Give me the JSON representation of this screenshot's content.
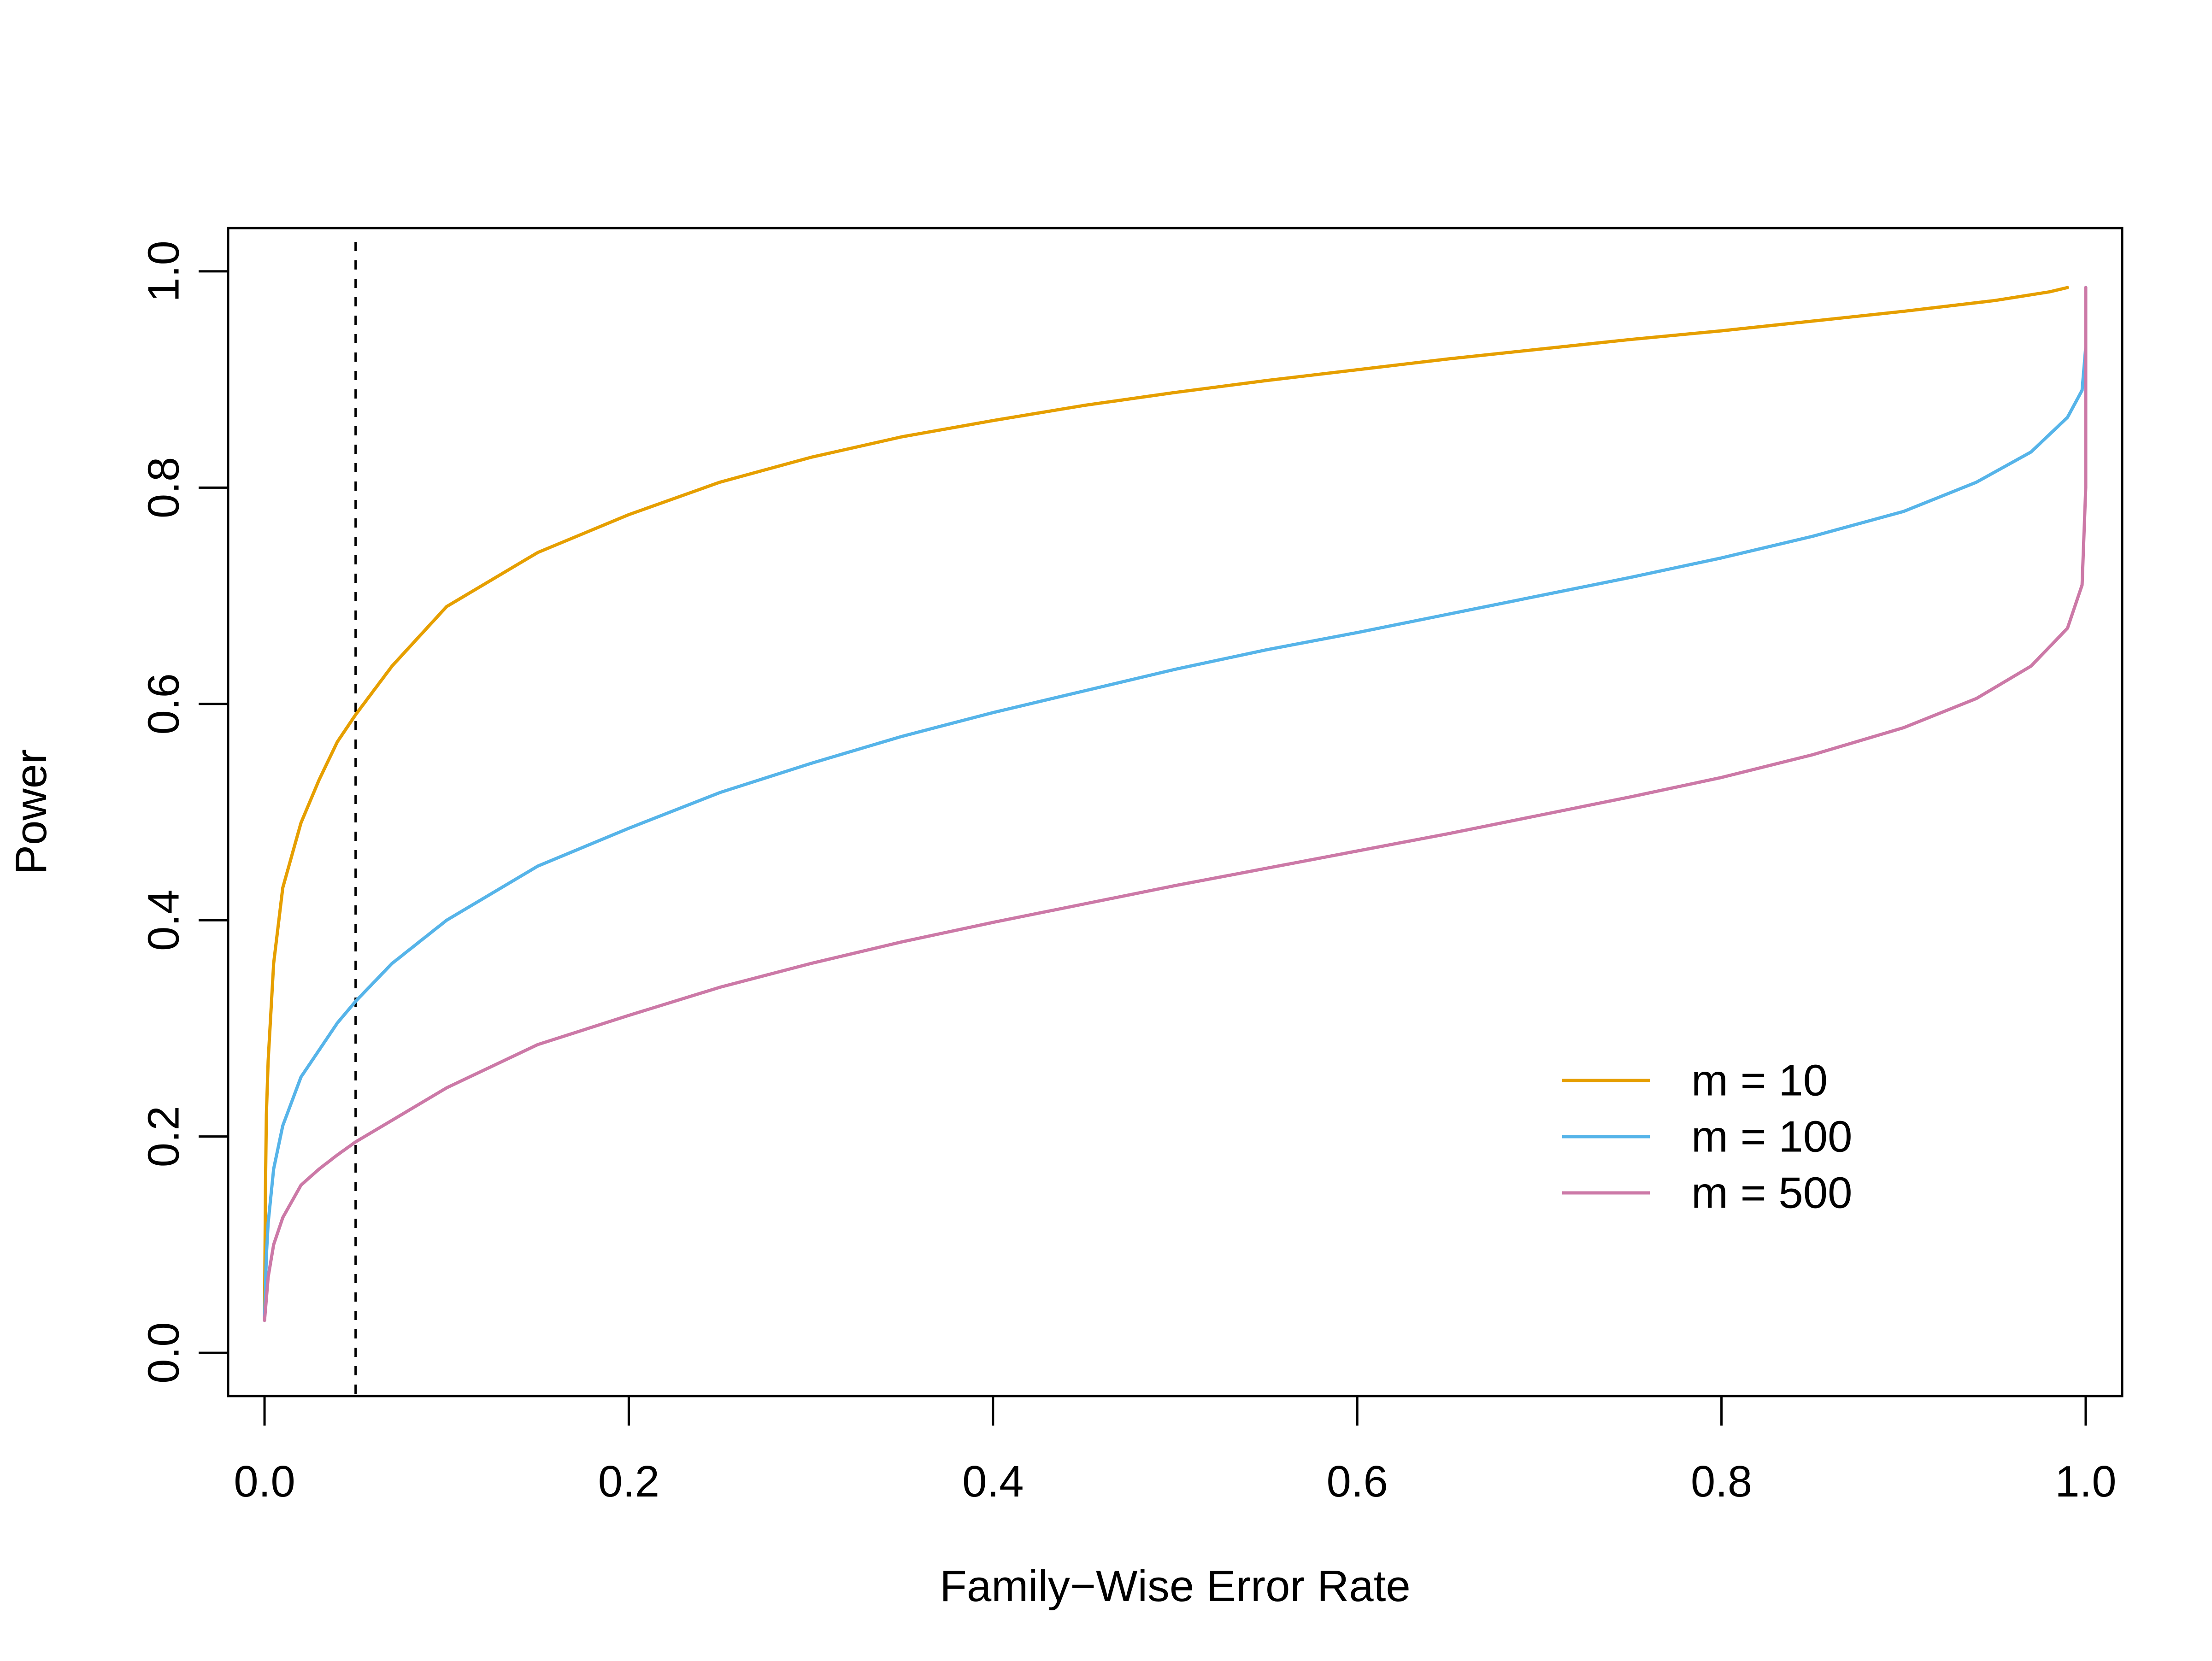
{
  "chart_data": {
    "type": "line",
    "title": "",
    "xlabel": "Family−Wise Error Rate",
    "ylabel": "Power",
    "xlim": [
      -0.02,
      1.02
    ],
    "ylim": [
      -0.04,
      1.04
    ],
    "x_ticks": [
      0.0,
      0.2,
      0.4,
      0.6,
      0.8,
      1.0
    ],
    "x_tick_labels": [
      "0.0",
      "0.2",
      "0.4",
      "0.6",
      "0.8",
      "1.0"
    ],
    "y_ticks": [
      0.0,
      0.2,
      0.4,
      0.6,
      0.8,
      1.0
    ],
    "y_tick_labels": [
      "0.0",
      "0.2",
      "0.4",
      "0.6",
      "0.8",
      "1.0"
    ],
    "grid": false,
    "legend_position": "bottom-right",
    "reference_line": {
      "orientation": "vertical",
      "x": 0.05,
      "style": "dashed",
      "color": "#000000"
    },
    "series": [
      {
        "name": "m = 10",
        "color": "#E69F00",
        "points": [
          [
            0.0,
            0.03
          ],
          [
            0.0005,
            0.15
          ],
          [
            0.001,
            0.22
          ],
          [
            0.002,
            0.27
          ],
          [
            0.005,
            0.36
          ],
          [
            0.01,
            0.43
          ],
          [
            0.02,
            0.49
          ],
          [
            0.03,
            0.53
          ],
          [
            0.04,
            0.565
          ],
          [
            0.05,
            0.59
          ],
          [
            0.07,
            0.635
          ],
          [
            0.1,
            0.69
          ],
          [
            0.15,
            0.74
          ],
          [
            0.2,
            0.775
          ],
          [
            0.25,
            0.805
          ],
          [
            0.3,
            0.828
          ],
          [
            0.35,
            0.847
          ],
          [
            0.4,
            0.862
          ],
          [
            0.45,
            0.876
          ],
          [
            0.5,
            0.888
          ],
          [
            0.55,
            0.899
          ],
          [
            0.6,
            0.909
          ],
          [
            0.65,
            0.919
          ],
          [
            0.7,
            0.928
          ],
          [
            0.75,
            0.937
          ],
          [
            0.8,
            0.945
          ],
          [
            0.85,
            0.954
          ],
          [
            0.9,
            0.963
          ],
          [
            0.95,
            0.973
          ],
          [
            0.98,
            0.981
          ],
          [
            0.99,
            0.985
          ]
        ]
      },
      {
        "name": "m = 100",
        "color": "#56B4E9",
        "points": [
          [
            0.0,
            0.03
          ],
          [
            0.001,
            0.09
          ],
          [
            0.002,
            0.12
          ],
          [
            0.005,
            0.17
          ],
          [
            0.01,
            0.21
          ],
          [
            0.02,
            0.255
          ],
          [
            0.03,
            0.28
          ],
          [
            0.04,
            0.305
          ],
          [
            0.05,
            0.325
          ],
          [
            0.07,
            0.36
          ],
          [
            0.1,
            0.4
          ],
          [
            0.15,
            0.45
          ],
          [
            0.2,
            0.485
          ],
          [
            0.25,
            0.518
          ],
          [
            0.3,
            0.545
          ],
          [
            0.35,
            0.57
          ],
          [
            0.4,
            0.592
          ],
          [
            0.45,
            0.612
          ],
          [
            0.5,
            0.632
          ],
          [
            0.55,
            0.65
          ],
          [
            0.6,
            0.666
          ],
          [
            0.65,
            0.683
          ],
          [
            0.7,
            0.7
          ],
          [
            0.75,
            0.717
          ],
          [
            0.8,
            0.735
          ],
          [
            0.85,
            0.755
          ],
          [
            0.9,
            0.778
          ],
          [
            0.94,
            0.805
          ],
          [
            0.97,
            0.833
          ],
          [
            0.99,
            0.865
          ],
          [
            0.998,
            0.89
          ],
          [
            1.0,
            0.93
          ],
          [
            1.0,
            0.985
          ]
        ]
      },
      {
        "name": "m = 500",
        "color": "#CC79A7",
        "points": [
          [
            0.0,
            0.03
          ],
          [
            0.001,
            0.05
          ],
          [
            0.002,
            0.07
          ],
          [
            0.005,
            0.1
          ],
          [
            0.01,
            0.125
          ],
          [
            0.02,
            0.155
          ],
          [
            0.03,
            0.17
          ],
          [
            0.04,
            0.183
          ],
          [
            0.05,
            0.195
          ],
          [
            0.07,
            0.215
          ],
          [
            0.1,
            0.245
          ],
          [
            0.15,
            0.285
          ],
          [
            0.2,
            0.312
          ],
          [
            0.25,
            0.338
          ],
          [
            0.3,
            0.36
          ],
          [
            0.35,
            0.38
          ],
          [
            0.4,
            0.398
          ],
          [
            0.45,
            0.415
          ],
          [
            0.5,
            0.432
          ],
          [
            0.55,
            0.448
          ],
          [
            0.6,
            0.464
          ],
          [
            0.65,
            0.48
          ],
          [
            0.7,
            0.497
          ],
          [
            0.75,
            0.514
          ],
          [
            0.8,
            0.532
          ],
          [
            0.85,
            0.553
          ],
          [
            0.9,
            0.578
          ],
          [
            0.94,
            0.605
          ],
          [
            0.97,
            0.635
          ],
          [
            0.99,
            0.67
          ],
          [
            0.998,
            0.71
          ],
          [
            1.0,
            0.8
          ],
          [
            1.0,
            0.985
          ]
        ]
      }
    ]
  }
}
